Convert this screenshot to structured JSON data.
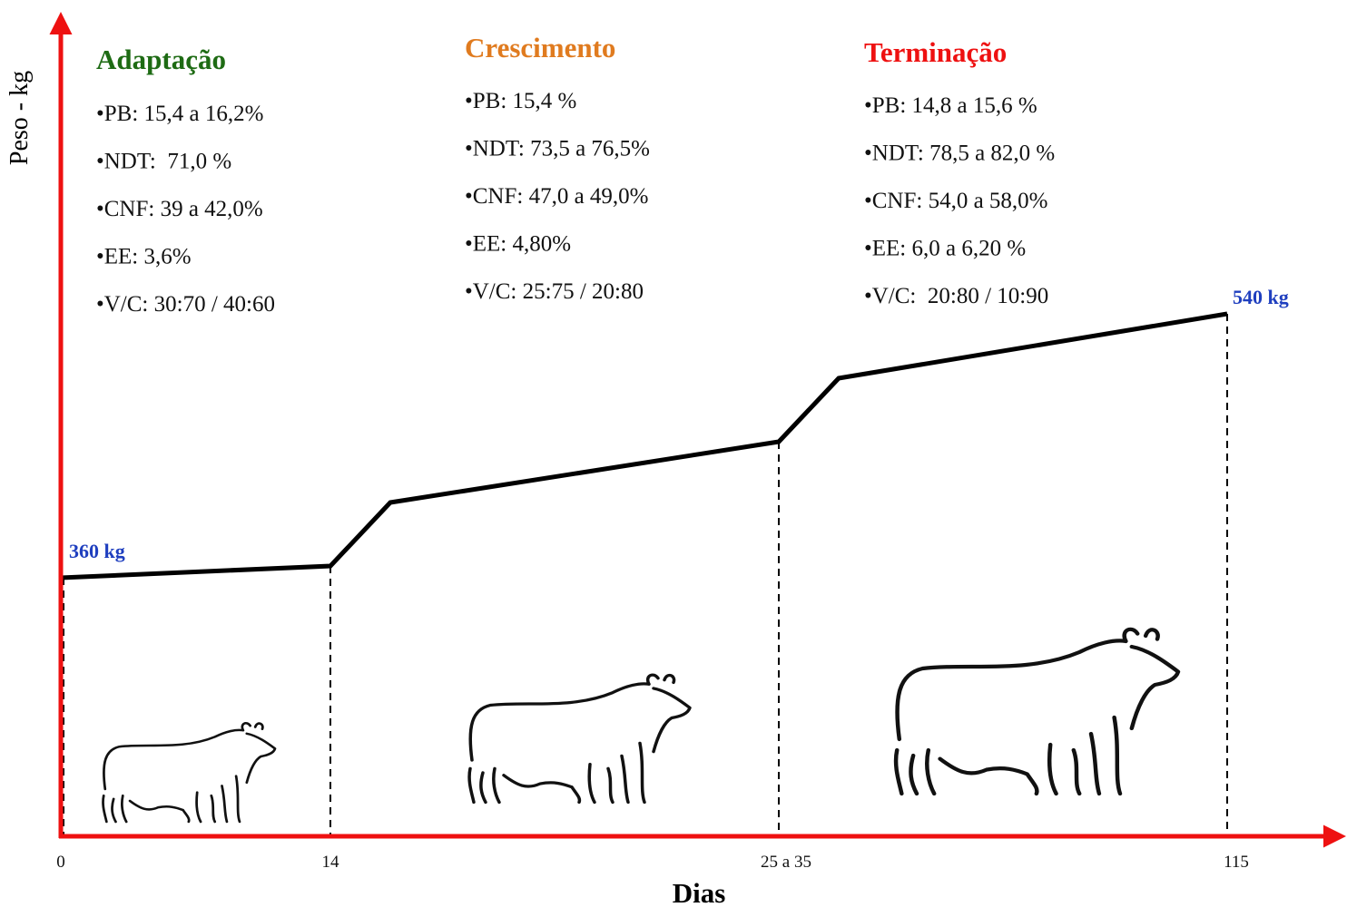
{
  "axes": {
    "y_label": "Peso - kg",
    "x_label": "Dias",
    "x_ticks": [
      "0",
      "14",
      "25 a 35",
      "115"
    ]
  },
  "weights": {
    "start": "360 kg",
    "end": "540 kg",
    "color": "#1f3fbf"
  },
  "phases": [
    {
      "title": "Adaptação",
      "color": "#1e6b14",
      "items": [
        "•PB: 15,4 a 16,2%",
        "•NDT:  71,0 %",
        "•CNF: 39 a 42,0%",
        "•EE: 3,6%",
        "•V/C: 30:70 / 40:60"
      ]
    },
    {
      "title": "Crescimento",
      "color": "#e07b1f",
      "items": [
        "•PB: 15,4 %",
        "•NDT: 73,5 a 76,5%",
        "•CNF: 47,0 a 49,0%",
        "•EE: 4,80%",
        "•V/C: 25:75 / 20:80"
      ]
    },
    {
      "title": "Terminação",
      "color": "#ee1111",
      "items": [
        "•PB: 14,8 a 15,6 %",
        "•NDT: 78,5 a 82,0 %",
        "•CNF: 54,0 a 58,0%",
        "•EE: 6,0 a 6,20 %",
        "•V/C:  20:80 / 10:90"
      ]
    }
  ]
}
